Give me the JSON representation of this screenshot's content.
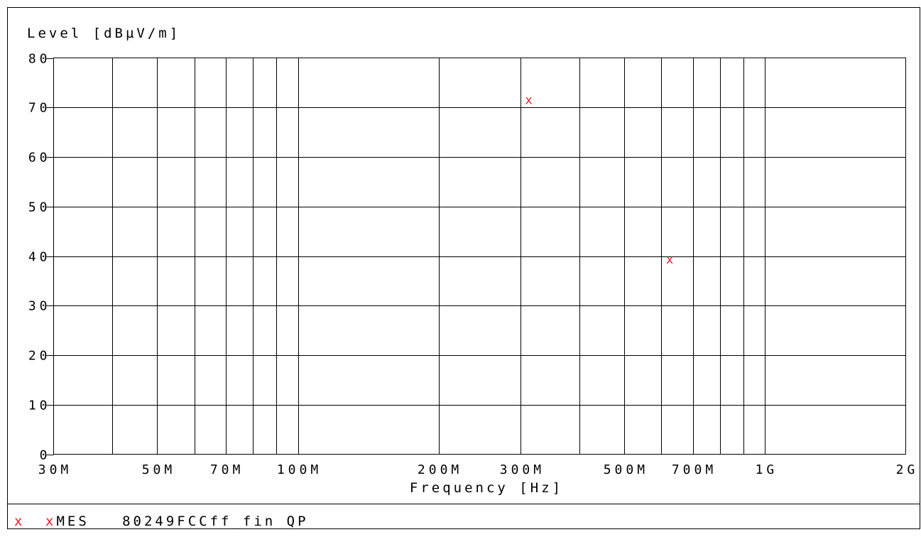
{
  "colors": {
    "axis": "#000000",
    "grid": "#000000",
    "marker": "#e8202a",
    "background": "#ffffff"
  },
  "legend": {
    "symbol": "x",
    "marker_label": "x",
    "text": "MES   80249FCCff_fin QP"
  },
  "chart_data": {
    "type": "scatter",
    "ylabel": "Level [dBµV/m]",
    "xlabel": "Frequency [Hz]",
    "xscale": "log",
    "xlim": [
      30000000,
      2000000000
    ],
    "ylim": [
      0,
      80
    ],
    "grid": true,
    "y_ticks": [
      {
        "value": 0,
        "label": "0"
      },
      {
        "value": 10,
        "label": "10"
      },
      {
        "value": 20,
        "label": "20"
      },
      {
        "value": 30,
        "label": "30"
      },
      {
        "value": 40,
        "label": "40"
      },
      {
        "value": 50,
        "label": "50"
      },
      {
        "value": 60,
        "label": "60"
      },
      {
        "value": 70,
        "label": "70"
      },
      {
        "value": 80,
        "label": "80"
      }
    ],
    "x_ticks": [
      {
        "value": 30000000,
        "label": "30M"
      },
      {
        "value": 50000000,
        "label": "50M"
      },
      {
        "value": 70000000,
        "label": "70M"
      },
      {
        "value": 100000000,
        "label": "100M"
      },
      {
        "value": 200000000,
        "label": "200M"
      },
      {
        "value": 300000000,
        "label": "300M"
      },
      {
        "value": 500000000,
        "label": "500M"
      },
      {
        "value": 700000000,
        "label": "700M"
      },
      {
        "value": 1000000000,
        "label": "1G"
      },
      {
        "value": 2000000000,
        "label": "2G"
      }
    ],
    "x_gridlines": [
      40000000,
      50000000,
      60000000,
      70000000,
      80000000,
      90000000,
      100000000,
      200000000,
      300000000,
      400000000,
      500000000,
      600000000,
      700000000,
      800000000,
      900000000,
      1000000000
    ],
    "series": [
      {
        "name": "MES   80249FCCff_fin QP",
        "marker": "x",
        "points": [
          {
            "x": 312000000,
            "y": 71.4
          },
          {
            "x": 625000000,
            "y": 39.2
          }
        ]
      }
    ]
  }
}
